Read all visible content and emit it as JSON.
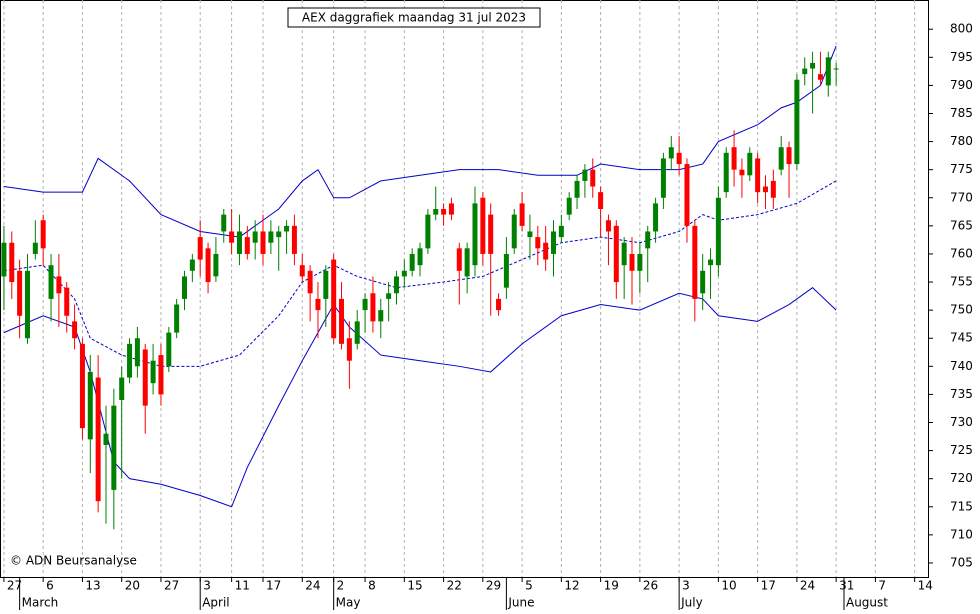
{
  "chart_data": {
    "type": "candlestick",
    "title": "AEX daggrafiek maandag 31 jul 2023",
    "copyright": "© ADN Beursanalyse",
    "up_color": "#008000",
    "down_color": "#ff0000",
    "open": [
      756,
      762,
      757,
      745,
      760,
      766,
      752,
      756,
      754,
      748,
      744,
      727,
      738,
      726,
      718,
      734,
      738,
      740,
      743,
      737,
      742,
      740,
      746,
      752,
      757,
      763,
      761,
      756,
      764,
      764,
      760,
      763,
      762,
      764,
      762,
      763,
      764,
      765,
      758,
      757,
      752,
      752,
      759,
      752,
      745,
      744,
      750,
      753,
      748,
      752,
      753,
      756,
      757,
      758,
      761,
      767,
      768,
      769,
      761,
      756,
      758,
      770,
      767,
      752,
      754,
      761,
      769,
      763,
      763,
      762,
      760,
      763,
      767,
      770,
      773,
      775,
      771,
      766,
      765,
      758,
      760,
      757,
      761,
      764,
      770,
      777,
      778,
      776,
      765,
      753,
      758,
      758,
      771,
      779,
      775,
      774,
      777,
      772,
      773,
      775,
      779,
      776,
      792,
      793,
      792,
      790,
      793
    ],
    "high": [
      765,
      764,
      759,
      760,
      766,
      767,
      760,
      760,
      755,
      751,
      745,
      742,
      742,
      733,
      736,
      740,
      745,
      747,
      744,
      744,
      744,
      747,
      752,
      757,
      760,
      766,
      762,
      763,
      768,
      768,
      767,
      765,
      766,
      767,
      766,
      765,
      766,
      767,
      760,
      758,
      755,
      758,
      760,
      755,
      748,
      750,
      753,
      756,
      752,
      755,
      757,
      759,
      761,
      762,
      768,
      772,
      769,
      770,
      762,
      762,
      772,
      771,
      769,
      753,
      763,
      768,
      771,
      767,
      765,
      765,
      766,
      767,
      771,
      774,
      776,
      777,
      772,
      767,
      766,
      763,
      763,
      762,
      765,
      770,
      778,
      781,
      781,
      777,
      766,
      760,
      761,
      772,
      779,
      782,
      777,
      779,
      778,
      774,
      775,
      781,
      780,
      792,
      795,
      796,
      796,
      796,
      794
    ],
    "low": [
      750,
      752,
      745,
      744,
      759,
      758,
      748,
      747,
      746,
      743,
      727,
      721,
      714,
      712,
      711,
      720,
      737,
      738,
      728,
      735,
      733,
      739,
      745,
      750,
      755,
      756,
      753,
      755,
      762,
      760,
      758,
      759,
      759,
      758,
      760,
      757,
      760,
      758,
      755,
      748,
      745,
      747,
      744,
      743,
      736,
      743,
      746,
      746,
      745,
      748,
      751,
      754,
      756,
      756,
      760,
      766,
      765,
      766,
      751,
      753,
      756,
      758,
      749,
      749,
      752,
      760,
      764,
      759,
      758,
      757,
      756,
      762,
      766,
      768,
      770,
      770,
      763,
      758,
      752,
      752,
      751,
      753,
      755,
      762,
      768,
      775,
      774,
      762,
      748,
      750,
      752,
      756,
      770,
      772,
      770,
      773,
      769,
      768,
      768,
      774,
      770,
      775,
      790,
      785,
      790,
      788,
      790
    ],
    "close": [
      762,
      755,
      749,
      757,
      762,
      761,
      758,
      753,
      749,
      745,
      729,
      739,
      716,
      728,
      733,
      738,
      744,
      745,
      733,
      741,
      735,
      746,
      751,
      756,
      759,
      759,
      755,
      760,
      767,
      762,
      764,
      760,
      764,
      760,
      764,
      764,
      765,
      760,
      756,
      753,
      750,
      757,
      745,
      744,
      741,
      748,
      752,
      748,
      750,
      753,
      756,
      757,
      760,
      761,
      767,
      768,
      767,
      767,
      757,
      761,
      769,
      760,
      760,
      750,
      760,
      767,
      765,
      764,
      761,
      759,
      764,
      765,
      770,
      773,
      775,
      772,
      768,
      764,
      755,
      762,
      757,
      760,
      764,
      769,
      777,
      779,
      776,
      765,
      752,
      757,
      759,
      770,
      778,
      775,
      774,
      778,
      771,
      771,
      770,
      779,
      776,
      791,
      793,
      794,
      791,
      795,
      793
    ],
    "bands": [
      {
        "color": "#0000cc",
        "dash": false,
        "x": [
          0,
          5,
          10,
          12,
          16,
          20,
          25,
          30,
          35,
          38,
          40,
          42,
          44,
          48,
          53,
          58,
          63,
          68,
          73,
          76,
          81,
          86,
          89,
          91,
          96,
          99,
          101,
          104,
          106
        ],
        "values": [
          772,
          771,
          771,
          777,
          773,
          767,
          764,
          763,
          768,
          773,
          775,
          770,
          770,
          773,
          774,
          775,
          775,
          774,
          774,
          776,
          775,
          775,
          776,
          780,
          783,
          786,
          787,
          790,
          797
        ]
      },
      {
        "color": "#0000cc",
        "dash": true,
        "x": [
          0,
          5,
          9,
          11,
          15,
          20,
          25,
          30,
          35,
          38,
          42,
          45,
          50,
          56,
          61,
          66,
          71,
          76,
          81,
          86,
          89,
          91,
          96,
          101,
          106
        ],
        "values": [
          757,
          758,
          752,
          745,
          742,
          740,
          740,
          742,
          749,
          755,
          758,
          756,
          754,
          755,
          756,
          759,
          762,
          763,
          762,
          764,
          767,
          766,
          767,
          769,
          773
        ]
      },
      {
        "color": "#0000cc",
        "dash": false,
        "x": [
          0,
          5,
          9,
          11,
          14,
          16,
          20,
          25,
          29,
          31,
          35,
          38,
          42,
          44,
          48,
          53,
          58,
          62,
          66,
          71,
          76,
          81,
          86,
          89,
          91,
          96,
          100,
          103,
          106
        ],
        "values": [
          746,
          749,
          747,
          739,
          723,
          720,
          719,
          717,
          715,
          722,
          733,
          741,
          751,
          747,
          742,
          741,
          740,
          739,
          744,
          749,
          751,
          750,
          753,
          752,
          749,
          748,
          751,
          754,
          750
        ]
      }
    ],
    "xlim": [
      -0.5,
      117.7
    ],
    "xticks": [
      {
        "value": 0,
        "label": "27"
      },
      {
        "value": 5,
        "label": "6"
      },
      {
        "value": 10,
        "label": "13"
      },
      {
        "value": 15,
        "label": "20"
      },
      {
        "value": 20,
        "label": "27"
      },
      {
        "value": 25,
        "label": "3"
      },
      {
        "value": 29,
        "label": "11"
      },
      {
        "value": 33,
        "label": "17"
      },
      {
        "value": 38,
        "label": "24"
      },
      {
        "value": 42,
        "label": "2"
      },
      {
        "value": 46,
        "label": "8"
      },
      {
        "value": 51,
        "label": "15"
      },
      {
        "value": 56,
        "label": "22"
      },
      {
        "value": 61,
        "label": "29"
      },
      {
        "value": 66,
        "label": "5"
      },
      {
        "value": 71,
        "label": "12"
      },
      {
        "value": 76,
        "label": "19"
      },
      {
        "value": 81,
        "label": "26"
      },
      {
        "value": 86,
        "label": "3"
      },
      {
        "value": 91,
        "label": "10"
      },
      {
        "value": 96,
        "label": "17"
      },
      {
        "value": 101,
        "label": "24"
      },
      {
        "value": 106,
        "label": "31"
      },
      {
        "value": 111,
        "label": "7"
      },
      {
        "value": 116,
        "label": "14"
      }
    ],
    "months": [
      {
        "value": 2,
        "label": "March"
      },
      {
        "value": 25,
        "label": "April"
      },
      {
        "value": 42,
        "label": "May"
      },
      {
        "value": 64,
        "label": "June"
      },
      {
        "value": 86,
        "label": "July"
      },
      {
        "value": 107,
        "label": "August"
      }
    ],
    "ylim": [
      702.5,
      805.2
    ],
    "yticks": [
      705,
      710,
      715,
      720,
      725,
      730,
      735,
      740,
      745,
      750,
      755,
      760,
      765,
      770,
      775,
      780,
      785,
      790,
      795,
      800
    ],
    "grid": true
  }
}
